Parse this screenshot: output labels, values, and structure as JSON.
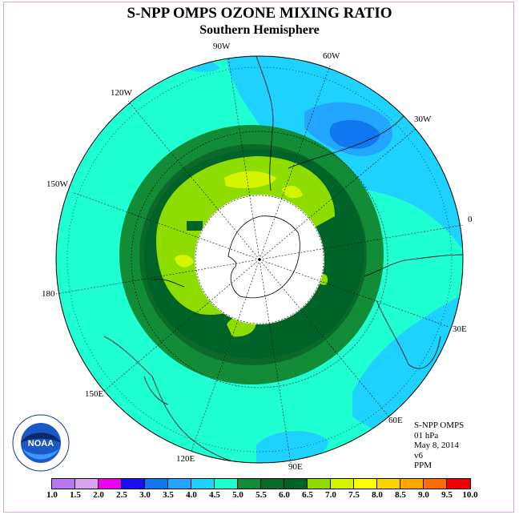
{
  "title": "S-NPP OMPS OZONE MIXING RATIO",
  "subtitle": "Southern Hemisphere",
  "longitude_labels": {
    "w90": "90W",
    "w60": "60W",
    "w30": "30W",
    "w120": "120W",
    "w150": "150W",
    "e0": "0",
    "e30": "30E",
    "e60": "60E",
    "e90": "90E",
    "e120": "120E",
    "e150": "150E",
    "e180": "180"
  },
  "info": {
    "instrument": "S-NPP OMPS",
    "level": "01 hPa",
    "date": "May 8, 2014",
    "version": "v6",
    "units": "PPM"
  },
  "logo": {
    "text": "NOAA",
    "icon": "noaa-logo"
  },
  "colorbar": {
    "labels": [
      "1.0",
      "1.5",
      "2.0",
      "2.5",
      "3.0",
      "3.5",
      "4.0",
      "4.5",
      "5.0",
      "5.5",
      "6.0",
      "6.5",
      "7.0",
      "7.5",
      "8.0",
      "8.5",
      "9.0",
      "9.5",
      "10.0"
    ],
    "colors": [
      "#b877f0",
      "#d9a3f2",
      "#ee00ee",
      "#1a0ff0",
      "#0f78f0",
      "#23a6ff",
      "#1ed2ff",
      "#1effd2",
      "#128c37",
      "#0b6a2a",
      "#006428",
      "#8fdc00",
      "#d3f500",
      "#ffff00",
      "#ffd200",
      "#ffa600",
      "#ff6d00",
      "#f00000",
      "#8c5a32"
    ]
  }
}
